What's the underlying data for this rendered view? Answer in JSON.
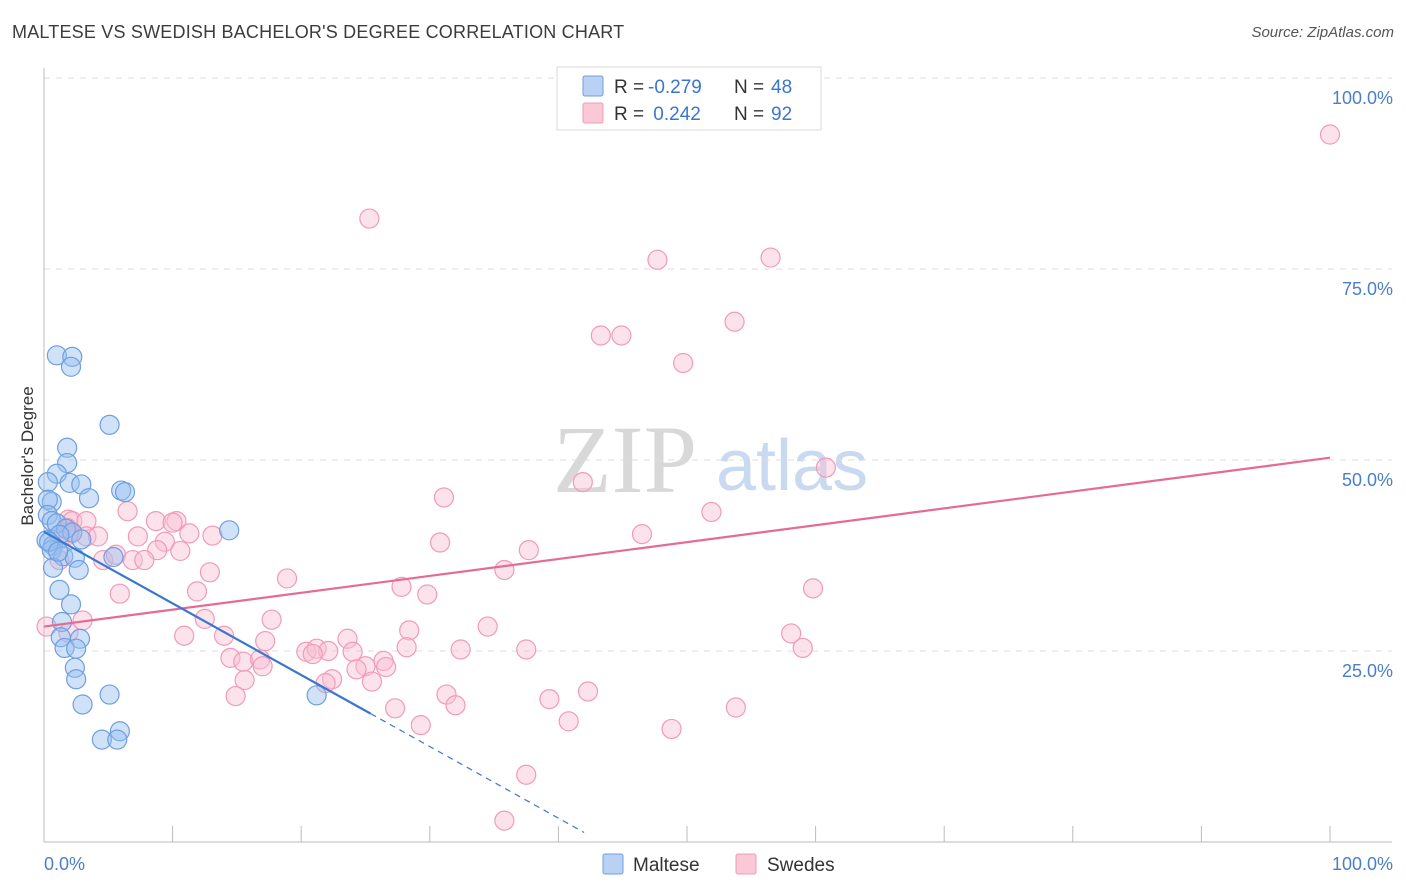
{
  "title": "MALTESE VS SWEDISH BACHELOR'S DEGREE CORRELATION CHART",
  "source": "Source: ZipAtlas.com",
  "colors": {
    "maltese": "#6f9fe0",
    "maltese_line": "#3a76d0",
    "swedes": "#f29ab8",
    "swedes_line": "#e56b94",
    "tick": "#4a7fc8"
  },
  "legend_box": {
    "rows": [
      {
        "r_label": "R =",
        "r_value": "-0.279",
        "n_label": "N =",
        "n_value": "48"
      },
      {
        "r_label": "R =",
        "r_value": " 0.242",
        "n_label": "N =",
        "n_value": "92"
      }
    ]
  },
  "bottom_legend": [
    "Maltese",
    "Swedes"
  ],
  "watermark": {
    "zip": "ZIP",
    "atlas": "atlas"
  },
  "chart_data": {
    "type": "scatter",
    "xlabel": "",
    "ylabel": "Bachelor's Degree",
    "xlim": [
      0,
      100
    ],
    "ylim": [
      0,
      100
    ],
    "x_tick_labels": [
      "0.0%",
      "100.0%"
    ],
    "y_tick_labels": [
      "100.0%",
      "75.0%",
      "50.0%",
      "25.0%"
    ],
    "y_ticks": [
      100,
      75,
      50,
      25
    ],
    "series": [
      {
        "name": "Maltese",
        "r": -0.279,
        "n": 48,
        "trend": {
          "x0": 0,
          "y0": 40.6,
          "x1": 25.4,
          "y1": 16.8,
          "dash_to_x": 42
        },
        "points": [
          [
            1.0,
            63.7
          ],
          [
            2.2,
            63.5
          ],
          [
            2.1,
            62.2
          ],
          [
            5.1,
            54.6
          ],
          [
            1.8,
            51.6
          ],
          [
            1.8,
            49.6
          ],
          [
            1.0,
            48.2
          ],
          [
            2.0,
            47.0
          ],
          [
            0.3,
            47.1
          ],
          [
            2.9,
            46.8
          ],
          [
            6.0,
            46.0
          ],
          [
            6.3,
            45.8
          ],
          [
            3.5,
            45.0
          ],
          [
            0.6,
            44.5
          ],
          [
            0.3,
            44.8
          ],
          [
            0.3,
            42.8
          ],
          [
            0.6,
            42.0
          ],
          [
            1.0,
            41.7
          ],
          [
            1.7,
            41.0
          ],
          [
            2.2,
            40.5
          ],
          [
            1.2,
            40.2
          ],
          [
            2.9,
            39.6
          ],
          [
            0.2,
            39.5
          ],
          [
            0.7,
            38.8
          ],
          [
            0.6,
            38.2
          ],
          [
            1.5,
            37.4
          ],
          [
            2.4,
            37.2
          ],
          [
            5.4,
            37.3
          ],
          [
            14.4,
            40.8
          ],
          [
            0.7,
            35.9
          ],
          [
            2.7,
            35.6
          ],
          [
            1.2,
            33.0
          ],
          [
            2.1,
            31.1
          ],
          [
            1.4,
            28.8
          ],
          [
            1.3,
            26.8
          ],
          [
            2.8,
            26.6
          ],
          [
            1.6,
            25.4
          ],
          [
            2.5,
            25.3
          ],
          [
            2.4,
            22.8
          ],
          [
            2.5,
            21.3
          ],
          [
            5.1,
            19.3
          ],
          [
            21.2,
            19.2
          ],
          [
            3.0,
            18.0
          ],
          [
            5.9,
            14.5
          ],
          [
            4.5,
            13.4
          ],
          [
            5.7,
            13.4
          ],
          [
            0.4,
            39.3
          ],
          [
            1.1,
            38.0
          ]
        ]
      },
      {
        "name": "Swedes",
        "r": 0.242,
        "n": 92,
        "trend": {
          "x0": 0,
          "y0": 28.2,
          "x1": 100,
          "y1": 50.3
        },
        "points": [
          [
            100.0,
            92.6
          ],
          [
            25.3,
            81.6
          ],
          [
            56.5,
            76.5
          ],
          [
            47.7,
            76.2
          ],
          [
            53.7,
            68.1
          ],
          [
            43.3,
            66.3
          ],
          [
            44.9,
            66.3
          ],
          [
            49.7,
            62.7
          ],
          [
            60.8,
            49.0
          ],
          [
            41.9,
            47.1
          ],
          [
            31.1,
            45.1
          ],
          [
            51.9,
            43.2
          ],
          [
            6.5,
            43.3
          ],
          [
            1.9,
            42.2
          ],
          [
            2.2,
            42.0
          ],
          [
            3.3,
            42.0
          ],
          [
            8.7,
            42.0
          ],
          [
            10.3,
            42.0
          ],
          [
            10.0,
            41.8
          ],
          [
            1.8,
            41.1
          ],
          [
            2.0,
            40.6
          ],
          [
            1.9,
            40.2
          ],
          [
            1.2,
            39.6
          ],
          [
            3.3,
            40.0
          ],
          [
            4.2,
            40.0
          ],
          [
            11.3,
            40.4
          ],
          [
            13.1,
            40.1
          ],
          [
            7.3,
            40.0
          ],
          [
            46.5,
            40.3
          ],
          [
            9.4,
            39.3
          ],
          [
            8.8,
            38.2
          ],
          [
            10.6,
            38.1
          ],
          [
            30.8,
            39.2
          ],
          [
            37.7,
            38.2
          ],
          [
            1.2,
            36.9
          ],
          [
            4.6,
            36.9
          ],
          [
            5.6,
            37.6
          ],
          [
            6.9,
            36.9
          ],
          [
            7.8,
            36.9
          ],
          [
            12.9,
            35.3
          ],
          [
            35.8,
            35.6
          ],
          [
            18.9,
            34.5
          ],
          [
            27.8,
            33.4
          ],
          [
            59.8,
            33.2
          ],
          [
            5.9,
            32.5
          ],
          [
            29.8,
            32.4
          ],
          [
            11.9,
            32.8
          ],
          [
            12.5,
            29.2
          ],
          [
            17.7,
            29.1
          ],
          [
            3.0,
            29.0
          ],
          [
            1.9,
            27.4
          ],
          [
            0.2,
            28.2
          ],
          [
            10.9,
            27.0
          ],
          [
            14.0,
            27.0
          ],
          [
            17.2,
            26.3
          ],
          [
            23.6,
            26.6
          ],
          [
            28.4,
            27.7
          ],
          [
            34.5,
            28.2
          ],
          [
            58.1,
            27.3
          ],
          [
            20.4,
            24.9
          ],
          [
            21.2,
            25.3
          ],
          [
            22.1,
            25.0
          ],
          [
            24.0,
            24.9
          ],
          [
            28.2,
            25.5
          ],
          [
            32.4,
            25.2
          ],
          [
            37.5,
            25.2
          ],
          [
            59.0,
            25.4
          ],
          [
            14.5,
            24.1
          ],
          [
            15.5,
            23.6
          ],
          [
            16.8,
            23.9
          ],
          [
            20.9,
            24.6
          ],
          [
            25.0,
            23.0
          ],
          [
            26.4,
            23.7
          ],
          [
            17.0,
            23.0
          ],
          [
            24.3,
            22.6
          ],
          [
            26.6,
            22.9
          ],
          [
            22.4,
            21.3
          ],
          [
            25.5,
            21.0
          ],
          [
            15.6,
            21.2
          ],
          [
            21.9,
            20.8
          ],
          [
            14.9,
            19.1
          ],
          [
            31.3,
            19.3
          ],
          [
            42.3,
            19.7
          ],
          [
            39.3,
            18.7
          ],
          [
            32.0,
            17.9
          ],
          [
            27.3,
            17.5
          ],
          [
            53.8,
            17.6
          ],
          [
            40.8,
            15.8
          ],
          [
            29.3,
            15.3
          ],
          [
            48.8,
            14.8
          ],
          [
            37.5,
            8.8
          ],
          [
            35.8,
            2.8
          ]
        ]
      }
    ]
  }
}
